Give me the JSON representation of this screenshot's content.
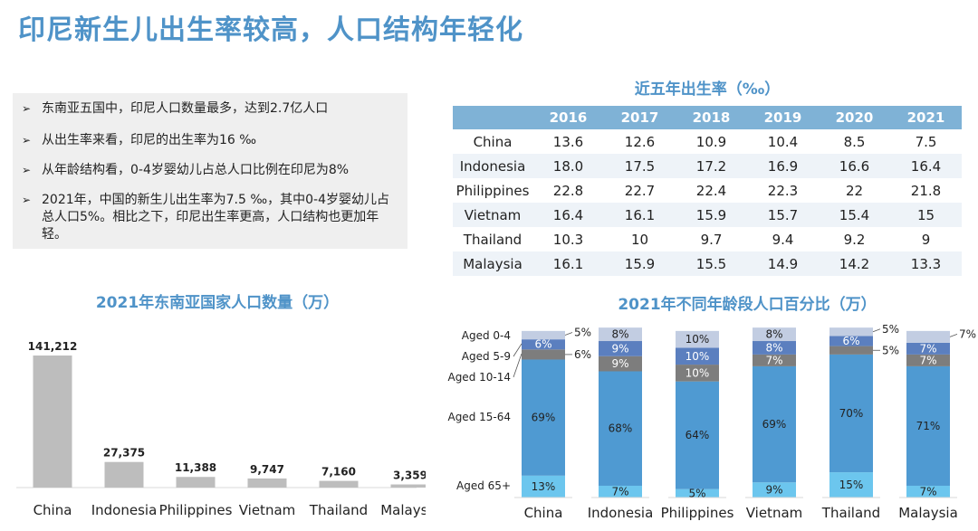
{
  "page_title": "印尼新生儿出生率较高，人口结构年轻化",
  "bullets": [
    "东南亚五国中，印尼人口数量最多，达到2.7亿人口",
    "从出生率来看，印尼的出生率为16 ‰",
    "从年龄结构看，0-4岁婴幼儿占总人口比例在印尼为8%",
    "2021年，中国的新生儿出生率为7.5 ‰，其中0-4岁婴幼儿占总人口5%。相比之下，印尼出生率更高，人口结构也更加年轻。"
  ],
  "bullet_arrow": "➢",
  "birth_rate_table": {
    "title": "近五年出生率（‰）",
    "years": [
      "2016",
      "2017",
      "2018",
      "2019",
      "2020",
      "2021"
    ],
    "rows": [
      {
        "country": "China",
        "values": [
          "13.6",
          "12.6",
          "10.9",
          "10.4",
          "8.5",
          "7.5"
        ]
      },
      {
        "country": "Indonesia",
        "values": [
          "18.0",
          "17.5",
          "17.2",
          "16.9",
          "16.6",
          "16.4"
        ]
      },
      {
        "country": "Philippines",
        "values": [
          "22.8",
          "22.7",
          "22.4",
          "22.3",
          "22",
          "21.8"
        ]
      },
      {
        "country": "Vietnam",
        "values": [
          "16.4",
          "16.1",
          "15.9",
          "15.7",
          "15.4",
          "15"
        ]
      },
      {
        "country": "Thailand",
        "values": [
          "10.3",
          "10",
          "9.7",
          "9.4",
          "9.2",
          "9"
        ]
      },
      {
        "country": "Malaysia",
        "values": [
          "16.1",
          "15.9",
          "15.5",
          "14.9",
          "14.2",
          "13.3"
        ]
      }
    ]
  },
  "colors": {
    "title": "#4f93c8",
    "bar_gray": "#bdbdbd",
    "seg_65": "#6cc6ee",
    "seg_15_64": "#4f9ad2",
    "seg_10_14": "#7d7d7d",
    "seg_5_9": "#5b7fbf",
    "seg_0_4": "#c2cde2"
  },
  "chart_data": [
    {
      "type": "bar",
      "title": "2021年东南亚国家人口数量（万）",
      "categories": [
        "China",
        "Indonesia",
        "Philippines",
        "Vietnam",
        "Thailand",
        "Malaysia"
      ],
      "values": [
        141212,
        27375,
        11388,
        9747,
        7160,
        3359
      ],
      "value_labels": [
        "141,212",
        "27,375",
        "11,388",
        "9,747",
        "7,160",
        "3,359"
      ],
      "ylim": [
        0,
        141212
      ],
      "grid": false,
      "legend": "none"
    },
    {
      "type": "bar",
      "stacked": true,
      "percent": true,
      "title": "2021年不同年龄段人口百分比（万）",
      "categories": [
        "China",
        "Indonesia",
        "Philippines",
        "Vietnam",
        "Thailand",
        "Malaysia"
      ],
      "series": [
        {
          "name": "Aged 65+",
          "values": [
            13,
            7,
            5,
            9,
            15,
            7
          ]
        },
        {
          "name": "Aged 15-64",
          "values": [
            69,
            68,
            64,
            69,
            70,
            71
          ]
        },
        {
          "name": "Aged 10-14",
          "values": [
            6,
            9,
            10,
            7,
            5,
            7
          ]
        },
        {
          "name": "Aged 5-9",
          "values": [
            6,
            9,
            10,
            8,
            6,
            7
          ]
        },
        {
          "name": "Aged 0-4",
          "values": [
            5,
            8,
            10,
            8,
            5,
            7
          ]
        }
      ],
      "ylim": [
        0,
        100
      ],
      "grid": false,
      "legend": "left"
    }
  ]
}
